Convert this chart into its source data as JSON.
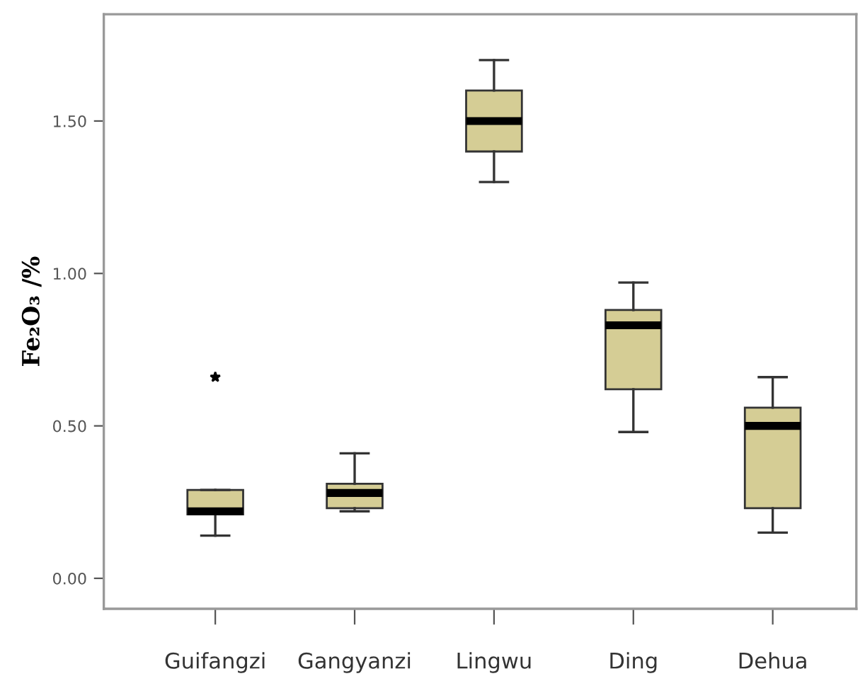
{
  "chart_data": {
    "type": "box",
    "ylabel": "Fe₂O₃ /%",
    "categories": [
      "Guifangzi",
      "Gangyanzi",
      "Lingwu",
      "Ding",
      "Dehua"
    ],
    "boxes": [
      {
        "low": 0.14,
        "q1": 0.21,
        "median": 0.22,
        "q3": 0.29,
        "high": 0.29,
        "outliers": [
          0.66
        ]
      },
      {
        "low": 0.22,
        "q1": 0.23,
        "median": 0.28,
        "q3": 0.31,
        "high": 0.41
      },
      {
        "low": 1.3,
        "q1": 1.4,
        "median": 1.5,
        "q3": 1.6,
        "high": 1.7
      },
      {
        "low": 0.48,
        "q1": 0.62,
        "median": 0.83,
        "q3": 0.88,
        "high": 0.97
      },
      {
        "low": 0.15,
        "q1": 0.23,
        "median": 0.5,
        "q3": 0.56,
        "high": 0.66
      }
    ],
    "color": "#d5cd95",
    "ylim": [
      -0.1,
      1.85
    ],
    "yticks": [
      {
        "value": 0,
        "label": "0.00"
      },
      {
        "value": 0.5,
        "label": "0.50"
      },
      {
        "value": 1.0,
        "label": "1.00"
      },
      {
        "value": 1.5,
        "label": "1.50"
      }
    ],
    "grid": false
  }
}
